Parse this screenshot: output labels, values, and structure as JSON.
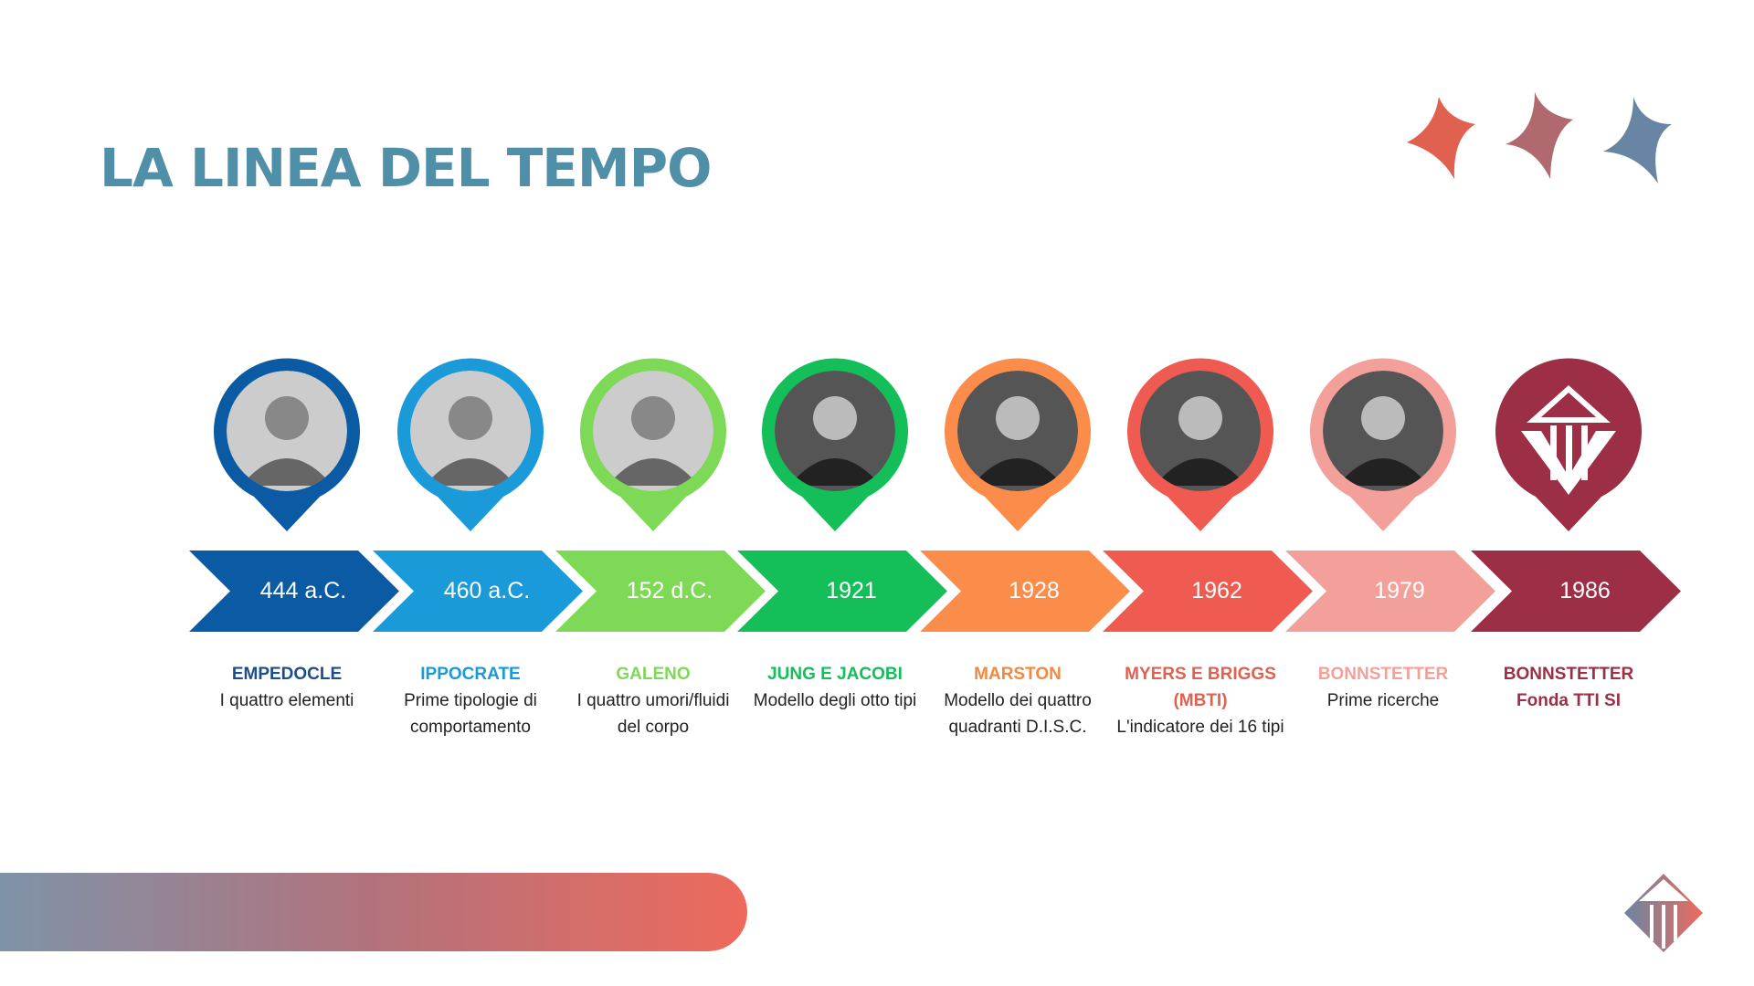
{
  "title": "LA LINEA DEL TEMPO",
  "colors": {
    "title": "#4f8fa8",
    "stars": [
      "#e0614f",
      "#b0696f",
      "#6886a4"
    ]
  },
  "events": [
    {
      "date": "444 a.C.",
      "name": "EMPEDOCLE",
      "desc": "I quattro elementi",
      "color": "#0a5ba3",
      "name_color": "#1c4f8a",
      "image": "portrait-engraving"
    },
    {
      "date": "460 a.C.",
      "name": "IPPOCRATE",
      "desc": "Prime tipologie di comportamento",
      "color": "#1a9ad9",
      "name_color": "#1a9ad9",
      "image": "portrait-engraving"
    },
    {
      "date": "152 d.C.",
      "name": "GALENO",
      "desc": "I quattro umori/fluidi del corpo",
      "color": "#7ed957",
      "name_color": "#7ed957",
      "image": "portrait-engraving"
    },
    {
      "date": "1921",
      "name": "JUNG E JACOBI",
      "desc": "Modello degli otto tipi",
      "color": "#14bf5a",
      "name_color": "#14bf5a",
      "image": "photo"
    },
    {
      "date": "1928",
      "name": "MARSTON",
      "desc": "Modello dei quattro quadranti D.I.S.C.",
      "color": "#fb8c4a",
      "name_color": "#f08a40",
      "image": "photo"
    },
    {
      "date": "1962",
      "name": "MYERS E BRIGGS (MBTI)",
      "desc": "L'indicatore dei 16 tipi",
      "color": "#ef5b50",
      "name_color": "#e0614f",
      "image": "photo"
    },
    {
      "date": "1979",
      "name": "BONNSTETTER",
      "desc": "Prime ricerche",
      "color": "#f4a09a",
      "name_color": "#f4a09a",
      "image": "photo"
    },
    {
      "date": "1986",
      "name": "BONNSTETTER",
      "desc": "Fonda TTI SI",
      "color": "#9c2f45",
      "name_color": "#9c2f45",
      "image": "logo",
      "desc_bold": true
    }
  ]
}
